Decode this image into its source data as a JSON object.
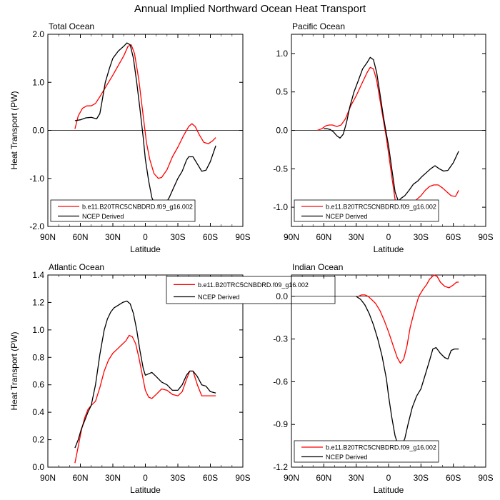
{
  "title": "Annual Implied Northward Ocean Heat Transport",
  "colors": {
    "model": "#ff0000",
    "obs": "#000000",
    "zero_line": "#000000"
  },
  "chart_data": [
    {
      "type": "line",
      "title": "Total Ocean",
      "xlabel": "Latitude",
      "ylabel": "Heat Transport (PW)",
      "xlim": [
        90,
        -90
      ],
      "ylim": [
        -2.0,
        2.0
      ],
      "xticks": [
        90,
        60,
        30,
        0,
        -30,
        -60,
        -90
      ],
      "xticklabels": [
        "90N",
        "60N",
        "30N",
        "0",
        "30S",
        "60S",
        "90S"
      ],
      "yticks": [
        -2.0,
        -1.0,
        0.0,
        1.0,
        2.0
      ],
      "yticklabels": [
        "-2.0",
        "-1.0",
        "0.0",
        "1.0",
        "2.0"
      ],
      "zero_line": true,
      "legend": "bottom",
      "series": [
        {
          "name": "b.e11.B20TRC5CNBDRD.f09_g16.002",
          "color": "#ff0000",
          "x": [
            65,
            62,
            58,
            54,
            50,
            46,
            42,
            38,
            34,
            30,
            25,
            20,
            16,
            13,
            10,
            6,
            2,
            -1,
            -4,
            -8,
            -12,
            -15,
            -20,
            -25,
            -30,
            -35,
            -40,
            -43,
            -46,
            -50,
            -54,
            -58,
            -62,
            -65
          ],
          "y": [
            0.03,
            0.3,
            0.46,
            0.51,
            0.51,
            0.56,
            0.7,
            0.85,
            1.0,
            1.15,
            1.35,
            1.55,
            1.75,
            1.78,
            1.6,
            1.05,
            0.3,
            -0.25,
            -0.6,
            -0.9,
            -1.0,
            -0.98,
            -0.82,
            -0.55,
            -0.35,
            -0.12,
            0.08,
            0.14,
            0.08,
            -0.1,
            -0.25,
            -0.28,
            -0.22,
            -0.15
          ]
        },
        {
          "name": "NCEP Derived",
          "color": "#000000",
          "x": [
            65,
            60,
            55,
            50,
            45,
            42,
            40,
            37,
            33,
            30,
            25,
            20,
            17,
            14,
            11,
            8,
            5,
            2,
            0,
            -3,
            -6,
            -10,
            -14,
            -18,
            -22,
            -26,
            -30,
            -34,
            -38,
            -40,
            -44,
            -48,
            -52,
            -56,
            -60,
            -65
          ],
          "y": [
            0.2,
            0.22,
            0.26,
            0.27,
            0.24,
            0.35,
            0.6,
            1.0,
            1.3,
            1.5,
            1.65,
            1.75,
            1.82,
            1.78,
            1.5,
            1.0,
            0.45,
            -0.15,
            -0.6,
            -1.05,
            -1.4,
            -1.62,
            -1.65,
            -1.55,
            -1.4,
            -1.2,
            -1.0,
            -0.85,
            -0.62,
            -0.55,
            -0.55,
            -0.7,
            -0.85,
            -0.83,
            -0.65,
            -0.32
          ]
        }
      ]
    },
    {
      "type": "line",
      "title": "Pacific Ocean",
      "xlabel": "Latitude",
      "ylabel": "",
      "xlim": [
        90,
        -90
      ],
      "ylim": [
        -1.25,
        1.25
      ],
      "xticks": [
        90,
        60,
        30,
        0,
        -30,
        -60,
        -90
      ],
      "xticklabels": [
        "90N",
        "60N",
        "30N",
        "0",
        "30S",
        "60S",
        "90S"
      ],
      "yticks": [
        -1.0,
        -0.5,
        0.0,
        0.5,
        1.0
      ],
      "yticklabels": [
        "-1.0",
        "-0.5",
        "0.0",
        "0.5",
        "1.0"
      ],
      "zero_line": true,
      "legend": "bottom",
      "series": [
        {
          "name": "b.e11.B20TRC5CNBDRD.f09_g16.002",
          "color": "#ff0000",
          "x": [
            66,
            62,
            58,
            55,
            52,
            48,
            44,
            40,
            35,
            30,
            25,
            20,
            17,
            14,
            11,
            8,
            5,
            2,
            0,
            -3,
            -6,
            -10,
            -14,
            -18,
            -22,
            -26,
            -30,
            -34,
            -38,
            -42,
            -46,
            -50,
            -54,
            -58,
            -62,
            -65
          ],
          "y": [
            0.0,
            0.02,
            0.06,
            0.07,
            0.07,
            0.05,
            0.07,
            0.15,
            0.32,
            0.45,
            0.6,
            0.75,
            0.82,
            0.8,
            0.65,
            0.4,
            0.15,
            -0.1,
            -0.3,
            -0.6,
            -0.9,
            -1.05,
            -1.08,
            -1.04,
            -0.96,
            -0.9,
            -0.85,
            -0.78,
            -0.73,
            -0.71,
            -0.71,
            -0.75,
            -0.8,
            -0.85,
            -0.86,
            -0.78
          ]
        },
        {
          "name": "NCEP Derived",
          "color": "#000000",
          "x": [
            60,
            57,
            54,
            51,
            48,
            45,
            42,
            39,
            36,
            32,
            28,
            24,
            20,
            17,
            14,
            11,
            8,
            5,
            2,
            0,
            -3,
            -6,
            -9,
            -12,
            -15,
            -19,
            -23,
            -27,
            -31,
            -35,
            -39,
            -43,
            -47,
            -51,
            -55,
            -60,
            -65
          ],
          "y": [
            0.02,
            0.02,
            0.01,
            -0.02,
            -0.07,
            -0.1,
            -0.05,
            0.1,
            0.3,
            0.5,
            0.65,
            0.8,
            0.88,
            0.95,
            0.92,
            0.75,
            0.48,
            0.2,
            -0.05,
            -0.2,
            -0.5,
            -0.8,
            -0.92,
            -0.88,
            -0.85,
            -0.78,
            -0.7,
            -0.66,
            -0.6,
            -0.55,
            -0.5,
            -0.46,
            -0.5,
            -0.53,
            -0.52,
            -0.42,
            -0.27
          ]
        }
      ]
    },
    {
      "type": "line",
      "title": "Atlantic Ocean",
      "xlabel": "Latitude",
      "ylabel": "Heat Transport (PW)",
      "xlim": [
        90,
        -90
      ],
      "ylim": [
        0.0,
        1.4
      ],
      "xticks": [
        90,
        60,
        30,
        0,
        -30,
        -60,
        -90
      ],
      "xticklabels": [
        "90N",
        "60N",
        "30N",
        "0",
        "30S",
        "60S",
        "90S"
      ],
      "yticks": [
        0.0,
        0.2,
        0.4,
        0.6,
        0.8,
        1.0,
        1.2,
        1.4
      ],
      "yticklabels": [
        "0.0",
        "0.2",
        "0.4",
        "0.6",
        "0.8",
        "1.0",
        "1.2",
        "1.4"
      ],
      "zero_line": false,
      "legend": "top",
      "series": [
        {
          "name": "b.e11.B20TRC5CNBDRD.f09_g16.002",
          "color": "#ff0000",
          "x": [
            65,
            62,
            59,
            56,
            53,
            50,
            46,
            42,
            38,
            34,
            30,
            26,
            22,
            18,
            15,
            12,
            9,
            6,
            3,
            0,
            -3,
            -6,
            -10,
            -15,
            -20,
            -25,
            -30,
            -34,
            -38,
            -41,
            -44,
            -48,
            -52,
            -56,
            -60,
            -65
          ],
          "y": [
            0.03,
            0.15,
            0.27,
            0.36,
            0.42,
            0.45,
            0.48,
            0.58,
            0.7,
            0.78,
            0.83,
            0.86,
            0.89,
            0.92,
            0.96,
            0.95,
            0.9,
            0.8,
            0.68,
            0.56,
            0.51,
            0.5,
            0.53,
            0.57,
            0.56,
            0.53,
            0.52,
            0.55,
            0.64,
            0.7,
            0.7,
            0.6,
            0.52,
            0.52,
            0.52,
            0.52
          ]
        },
        {
          "name": "NCEP Derived",
          "color": "#000000",
          "x": [
            65,
            62,
            59,
            56,
            53,
            50,
            46,
            42,
            38,
            35,
            32,
            29,
            25,
            21,
            17,
            14,
            11,
            8,
            5,
            2,
            0,
            -3,
            -6,
            -10,
            -15,
            -20,
            -25,
            -30,
            -34,
            -38,
            -41,
            -44,
            -48,
            -52,
            -56,
            -60,
            -65
          ],
          "y": [
            0.14,
            0.2,
            0.28,
            0.34,
            0.4,
            0.45,
            0.6,
            0.82,
            1.0,
            1.08,
            1.13,
            1.16,
            1.18,
            1.2,
            1.21,
            1.19,
            1.12,
            1.0,
            0.85,
            0.72,
            0.67,
            0.68,
            0.69,
            0.66,
            0.62,
            0.6,
            0.56,
            0.56,
            0.6,
            0.67,
            0.7,
            0.7,
            0.66,
            0.6,
            0.59,
            0.55,
            0.54
          ]
        }
      ]
    },
    {
      "type": "line",
      "title": "Indian Ocean",
      "xlabel": "Latitude",
      "ylabel": "",
      "xlim": [
        90,
        -90
      ],
      "ylim": [
        -1.2,
        0.15
      ],
      "xticks": [
        90,
        60,
        30,
        0,
        -30,
        -60,
        -90
      ],
      "xticklabels": [
        "90N",
        "60N",
        "30N",
        "0",
        "30S",
        "60S",
        "90S"
      ],
      "yticks": [
        -1.2,
        -0.9,
        -0.6,
        -0.3,
        0.0
      ],
      "yticklabels": [
        "-1.2",
        "-0.9",
        "-0.6",
        "-0.3",
        "0.0"
      ],
      "zero_line": true,
      "legend": "bottom",
      "series": [
        {
          "name": "b.e11.B20TRC5CNBDRD.f09_g16.002",
          "color": "#ff0000",
          "x": [
            28,
            25,
            22,
            19,
            16,
            12,
            8,
            4,
            0,
            -4,
            -8,
            -11,
            -14,
            -17,
            -20,
            -24,
            -28,
            -32,
            -35,
            -38,
            -42,
            -45,
            -48,
            -52,
            -56,
            -60,
            -63,
            -65
          ],
          "y": [
            0.0,
            0.01,
            0.01,
            0.0,
            -0.02,
            -0.05,
            -0.1,
            -0.17,
            -0.25,
            -0.34,
            -0.43,
            -0.47,
            -0.44,
            -0.35,
            -0.22,
            -0.1,
            0.0,
            0.05,
            0.08,
            0.12,
            0.15,
            0.14,
            0.1,
            0.07,
            0.06,
            0.08,
            0.1,
            0.1
          ]
        },
        {
          "name": "NCEP Derived",
          "color": "#000000",
          "x": [
            30,
            26,
            22,
            18,
            14,
            10,
            6,
            2,
            0,
            -3,
            -6,
            -9,
            -12,
            -15,
            -18,
            -22,
            -26,
            -30,
            -34,
            -38,
            -41,
            -44,
            -48,
            -52,
            -55,
            -58,
            -61,
            -65
          ],
          "y": [
            0.0,
            -0.02,
            -0.06,
            -0.12,
            -0.2,
            -0.3,
            -0.42,
            -0.58,
            -0.7,
            -0.85,
            -0.98,
            -1.05,
            -1.05,
            -1.0,
            -0.9,
            -0.78,
            -0.7,
            -0.65,
            -0.55,
            -0.45,
            -0.37,
            -0.36,
            -0.4,
            -0.43,
            -0.44,
            -0.38,
            -0.37,
            -0.37
          ]
        }
      ]
    }
  ]
}
